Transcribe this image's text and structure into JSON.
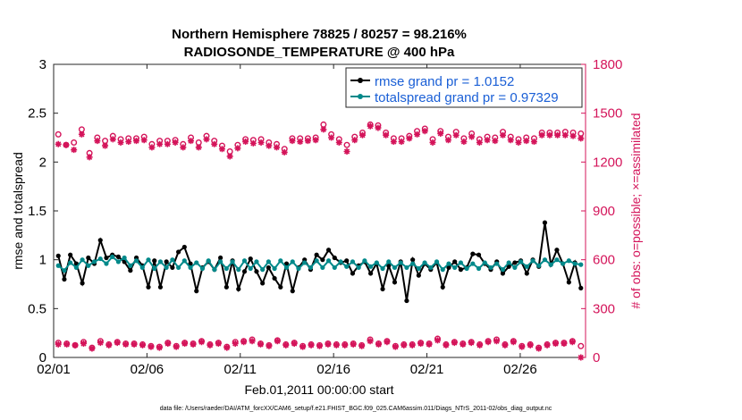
{
  "chart_data": {
    "type": "line",
    "title": "Northern Hemisphere 78825 / 80257 = 98.216%",
    "subtitle": "RADIOSONDE_TEMPERATURE @ 400 hPa",
    "xlabel": "Feb.01,2011 00:00:00 start",
    "ylabel": "rmse and totalspread",
    "ylabel_right": "# of obs: o=possible; ×=assimilated",
    "xlim": [
      0,
      28.5
    ],
    "ylim": [
      0,
      3
    ],
    "ylim_right": [
      0,
      1800
    ],
    "x_ticks": [
      0,
      5,
      10,
      15,
      20,
      25
    ],
    "x_tick_labels": [
      "02/01",
      "02/06",
      "02/11",
      "02/16",
      "02/21",
      "02/26"
    ],
    "y_ticks": [
      0,
      0.5,
      1,
      1.5,
      2,
      2.5,
      3
    ],
    "y_tick_labels": [
      "0",
      "0.5",
      "1",
      "1.5",
      "2",
      "2.5",
      "3"
    ],
    "y_right_ticks": [
      0,
      300,
      600,
      900,
      1200,
      1500,
      1800
    ],
    "y_right_tick_labels": [
      "0",
      "300",
      "600",
      "900",
      "1200",
      "1500",
      "1800"
    ],
    "legend_position": "top-right",
    "series": [
      {
        "name": "rmse grand pr = 1.0152",
        "color": "#000000",
        "marker": "dot",
        "values": [
          1.04,
          0.8,
          1.05,
          0.96,
          0.76,
          1.02,
          0.96,
          1.2,
          1.02,
          1.05,
          1.03,
          0.98,
          0.89,
          1.02,
          0.94,
          0.72,
          0.99,
          0.72,
          0.98,
          0.92,
          1.08,
          1.13,
          0.96,
          0.68,
          0.92,
          0.98,
          0.9,
          1.02,
          0.72,
          0.99,
          0.7,
          0.88,
          1.01,
          0.88,
          0.76,
          0.92,
          0.81,
          0.72,
          0.96,
          0.68,
          0.92,
          1.0,
          0.9,
          1.05,
          1.0,
          1.1,
          1.02,
          0.97,
          0.99,
          0.86,
          0.94,
          0.98,
          0.86,
          0.96,
          0.7,
          0.94,
          0.77,
          0.98,
          0.58,
          1.0,
          0.84,
          0.96,
          0.9,
          0.97,
          0.72,
          0.92,
          0.98,
          0.9,
          0.92,
          1.06,
          1.05,
          0.96,
          0.9,
          0.98,
          0.86,
          0.93,
          0.97,
          0.99,
          0.86,
          1.0,
          0.93,
          1.38,
          0.95,
          1.1,
          0.96,
          0.77,
          0.97,
          0.71
        ]
      },
      {
        "name": "totalspread grand pr = 0.97329",
        "color": "#00898a",
        "marker": "dot",
        "values": [
          0.94,
          0.89,
          0.97,
          0.92,
          1.0,
          0.94,
          0.98,
          1.01,
          0.96,
          1.03,
          0.98,
          1.02,
          0.94,
          0.99,
          0.92,
          1.0,
          0.91,
          0.98,
          0.92,
          1.0,
          0.92,
          0.99,
          0.92,
          0.97,
          0.91,
          0.99,
          0.9,
          0.98,
          0.91,
          0.98,
          0.9,
          0.99,
          0.91,
          0.98,
          0.9,
          0.98,
          0.91,
          0.99,
          0.92,
          0.98,
          0.91,
          0.97,
          0.92,
          0.99,
          0.92,
          0.99,
          0.92,
          0.98,
          0.93,
          0.98,
          0.92,
          0.99,
          0.93,
          0.97,
          0.91,
          0.98,
          0.92,
          0.97,
          0.92,
          0.96,
          0.91,
          0.97,
          0.92,
          0.98,
          0.9,
          0.96,
          0.92,
          0.97,
          0.91,
          0.96,
          0.91,
          0.97,
          0.92,
          0.96,
          0.9,
          0.97,
          0.92,
          0.98,
          0.93,
          0.99,
          0.94,
          1.0,
          0.95,
          1.0,
          0.96,
          0.99,
          0.96,
          0.95
        ]
      },
      {
        "name": "possible",
        "color": "#d4145a",
        "marker": "circle",
        "axis": "right",
        "values": [
          1370,
          1305,
          1320,
          1400,
          1255,
          1350,
          1330,
          1360,
          1340,
          1345,
          1345,
          1355,
          1310,
          1330,
          1330,
          1335,
          1310,
          1350,
          1320,
          1360,
          1330,
          1300,
          1265,
          1305,
          1340,
          1335,
          1340,
          1320,
          1310,
          1280,
          1345,
          1345,
          1345,
          1350,
          1430,
          1370,
          1340,
          1305,
          1355,
          1380,
          1430,
          1425,
          1380,
          1345,
          1345,
          1360,
          1390,
          1405,
          1340,
          1390,
          1355,
          1385,
          1345,
          1375,
          1340,
          1355,
          1350,
          1385,
          1355,
          1340,
          1350,
          1345,
          1380,
          1380,
          1380,
          1385,
          1380,
          1375
        ]
      },
      {
        "name": "assimilated",
        "color": "#d4145a",
        "marker": "star",
        "axis": "right",
        "values": [
          1310,
          1305,
          1275,
          1370,
          1230,
          1330,
          1300,
          1340,
          1320,
          1325,
          1330,
          1335,
          1290,
          1310,
          1310,
          1320,
          1290,
          1330,
          1290,
          1340,
          1310,
          1280,
          1235,
          1285,
          1325,
          1315,
          1320,
          1300,
          1290,
          1260,
          1330,
          1325,
          1330,
          1335,
          1400,
          1350,
          1320,
          1265,
          1335,
          1365,
          1420,
          1410,
          1365,
          1325,
          1325,
          1345,
          1370,
          1390,
          1320,
          1375,
          1335,
          1365,
          1325,
          1355,
          1320,
          1335,
          1330,
          1365,
          1335,
          1320,
          1330,
          1325,
          1365,
          1365,
          1365,
          1365,
          1360,
          1345
        ]
      },
      {
        "name": "possible bottom",
        "color": "#d4145a",
        "marker": "circle",
        "axis": "right",
        "values": [
          90,
          85,
          75,
          95,
          60,
          100,
          80,
          95,
          85,
          85,
          80,
          70,
          65,
          90,
          70,
          90,
          85,
          100,
          80,
          90,
          65,
          95,
          100,
          110,
          85,
          75,
          105,
          80,
          90,
          70,
          80,
          75,
          85,
          80,
          80,
          85,
          75,
          110,
          85,
          100,
          70,
          80,
          80,
          90,
          85,
          115,
          80,
          95,
          85,
          95,
          80,
          100,
          110,
          80,
          100,
          70,
          80,
          60,
          80,
          90,
          90,
          100,
          70
        ]
      },
      {
        "name": "assimilated bottom",
        "color": "#d4145a",
        "marker": "star",
        "axis": "right",
        "values": [
          80,
          80,
          75,
          85,
          55,
          90,
          75,
          90,
          80,
          80,
          75,
          65,
          60,
          85,
          65,
          85,
          80,
          95,
          75,
          85,
          60,
          85,
          95,
          100,
          80,
          70,
          100,
          75,
          85,
          65,
          75,
          70,
          80,
          75,
          75,
          80,
          70,
          100,
          80,
          95,
          65,
          75,
          75,
          85,
          80,
          105,
          75,
          90,
          80,
          90,
          75,
          95,
          100,
          75,
          95,
          65,
          75,
          55,
          75,
          85,
          85,
          95,
          0
        ]
      }
    ],
    "footnote": "data file: /Users/raeder/DAI/ATM_forcXX/CAM6_setup/f.e21.FHIST_BGC.f09_025.CAM6assim.011/Diags_NTrS_2011-02/obs_diag_output.nc"
  }
}
